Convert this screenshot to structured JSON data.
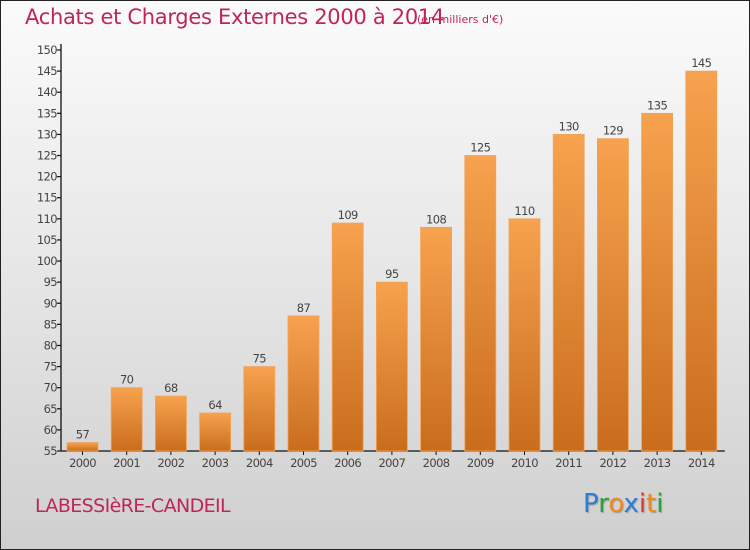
{
  "header": {
    "title": "Achats et Charges Externes 2000 à 2014",
    "subtitle": "(en milliers d'€)"
  },
  "footer": {
    "commune": "LABESSIèRE-CANDEIL",
    "logo": {
      "letters": [
        {
          "char": "P",
          "color": "#2a7fd4"
        },
        {
          "char": "r",
          "color": "#2f9e3c"
        },
        {
          "char": "o",
          "color": "#f08a1c"
        },
        {
          "char": "x",
          "color": "#2a7fd4"
        },
        {
          "char": "i",
          "color": "#e03a2c"
        },
        {
          "char": "t",
          "color": "#f08a1c"
        },
        {
          "char": "i",
          "color": "#2f9e3c"
        }
      ]
    }
  },
  "colors": {
    "title": "#c0245c",
    "bar_top": "#f7a24e",
    "bar_bottom": "#c96d1c"
  },
  "chart_data": {
    "type": "bar",
    "title": "Achats et Charges Externes 2000 à 2014",
    "subtitle": "(en milliers d'€)",
    "xlabel": "",
    "ylabel": "",
    "categories": [
      "2000",
      "2001",
      "2002",
      "2003",
      "2004",
      "2005",
      "2006",
      "2007",
      "2008",
      "2009",
      "2010",
      "2011",
      "2012",
      "2013",
      "2014"
    ],
    "values": [
      57,
      70,
      68,
      64,
      75,
      87,
      109,
      95,
      108,
      125,
      110,
      130,
      129,
      135,
      145
    ],
    "ylim": [
      55,
      150
    ],
    "yticks": [
      55,
      60,
      65,
      70,
      75,
      80,
      85,
      90,
      95,
      100,
      105,
      110,
      115,
      120,
      125,
      130,
      135,
      140,
      145,
      150
    ],
    "grid": false,
    "legend": "none",
    "data_labels": true
  }
}
